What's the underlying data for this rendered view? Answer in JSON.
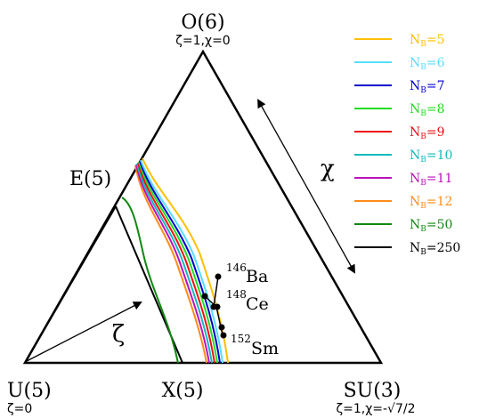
{
  "vertices": {
    "o6": {
      "name": "O(6)",
      "params": "ζ=1,χ=0"
    },
    "e5": {
      "name": "E(5)"
    },
    "u5": {
      "name": "U(5)",
      "params": "ζ=0"
    },
    "x5": {
      "name": "X(5)"
    },
    "su3": {
      "name": "SU(3)",
      "params": "ζ=1,χ=-√7/2"
    }
  },
  "axis_labels": {
    "chi": "χ",
    "zeta": "ζ"
  },
  "nuclei": [
    {
      "mass": "146",
      "symbol": "Ba"
    },
    {
      "mass": "148",
      "symbol": "Ce"
    },
    {
      "mass": "152",
      "symbol": "Sm"
    }
  ],
  "legend": [
    {
      "text": "N",
      "sub": "B",
      "value": "=5",
      "color": "#ffc000"
    },
    {
      "text": "N",
      "sub": "B",
      "value": "=6",
      "color": "#55ddff"
    },
    {
      "text": "N",
      "sub": "B",
      "value": "=7",
      "color": "#0000cc"
    },
    {
      "text": "N",
      "sub": "B",
      "value": "=8",
      "color": "#22dd22"
    },
    {
      "text": "N",
      "sub": "B",
      "value": "=9",
      "color": "#ee1111"
    },
    {
      "text": "N",
      "sub": "B",
      "value": "=10",
      "color": "#11bbbb"
    },
    {
      "text": "N",
      "sub": "B",
      "value": "=11",
      "color": "#bb11bb"
    },
    {
      "text": "N",
      "sub": "B",
      "value": "=12",
      "color": "#ff8c1a"
    },
    {
      "text": "N",
      "sub": "B",
      "value": "=50",
      "color": "#118811"
    },
    {
      "text": "N",
      "sub": "B",
      "value": "=250",
      "color": "#000000"
    }
  ]
}
